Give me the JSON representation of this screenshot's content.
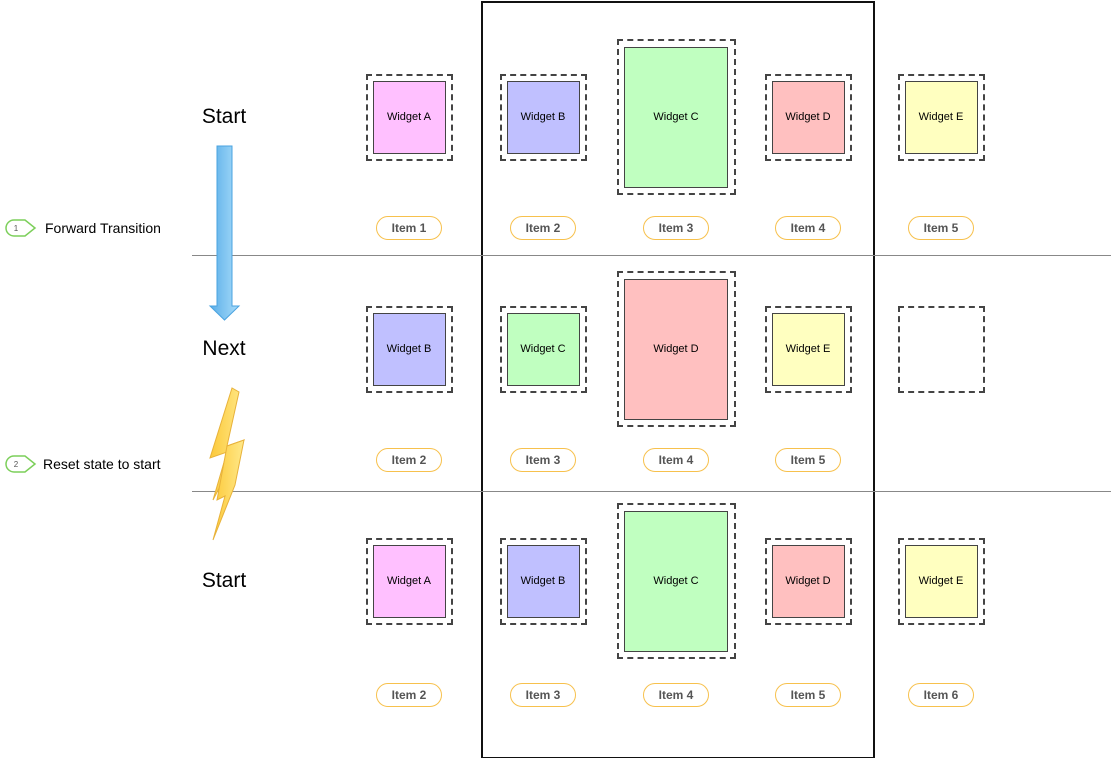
{
  "states": [
    {
      "label": "Start",
      "widgets": [
        {
          "label": "Widget A",
          "color": "#ffc0ff"
        },
        {
          "label": "Widget B",
          "color": "#c0c0ff"
        },
        {
          "label": "Widget C",
          "color": "#c0ffc0",
          "tall": true
        },
        {
          "label": "Widget D",
          "color": "#ffc0c0"
        },
        {
          "label": "Widget E",
          "color": "#ffffc0"
        }
      ],
      "items": [
        "Item 1",
        "Item 2",
        "Item 3",
        "Item 4",
        "Item 5"
      ]
    },
    {
      "label": "Next",
      "widgets": [
        {
          "label": "Widget B",
          "color": "#c0c0ff"
        },
        {
          "label": "Widget C",
          "color": "#c0ffc0"
        },
        {
          "label": "Widget D",
          "color": "#ffc0c0",
          "tall": true
        },
        {
          "label": "Widget E",
          "color": "#ffffc0"
        },
        null
      ],
      "items": [
        "Item 2",
        "Item 3",
        "Item 4",
        "Item 5"
      ]
    },
    {
      "label": "Start",
      "widgets": [
        {
          "label": "Widget A",
          "color": "#ffc0ff"
        },
        {
          "label": "Widget B",
          "color": "#c0c0ff"
        },
        {
          "label": "Widget C",
          "color": "#c0ffc0",
          "tall": true
        },
        {
          "label": "Widget D",
          "color": "#ffc0c0"
        },
        {
          "label": "Widget E",
          "color": "#ffffc0"
        }
      ],
      "items": [
        "Item 2",
        "Item 3",
        "Item 4",
        "Item 5",
        "Item 6"
      ]
    }
  ],
  "notes": [
    {
      "number": "1",
      "text": "Forward Transition",
      "icon": "numbered-marker-icon"
    },
    {
      "number": "2",
      "text": "Reset state to start",
      "icon": "numbered-marker-icon"
    }
  ],
  "arrows": {
    "forward": "blue-down-arrow-icon",
    "reset": "lightning-bolt-icon"
  },
  "colors": {
    "item_border": "#f7c14d",
    "note_marker": "#7ccf5a",
    "arrow": "#6bbcf0",
    "bolt": "#fcd34d"
  }
}
